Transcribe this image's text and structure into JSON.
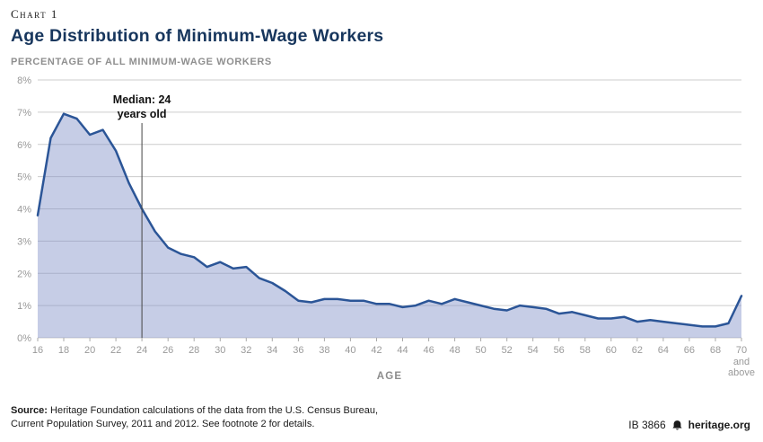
{
  "header": {
    "kicker": "Chart 1",
    "title": "Age Distribution of Minimum-Wage Workers",
    "subtitle": "PERCENTAGE OF ALL MINIMUM-WAGE WORKERS"
  },
  "chart_data": {
    "type": "area",
    "title": "Age Distribution of Minimum-Wage Workers",
    "xlabel": "AGE",
    "ylabel": "PERCENTAGE OF ALL MINIMUM-WAGE WORKERS",
    "ylim": [
      0,
      8
    ],
    "y_tick_suffix": "%",
    "x_tick_step": 2,
    "last_tick_extra": [
      "and",
      "above"
    ],
    "grid": true,
    "x": [
      16,
      17,
      18,
      19,
      20,
      21,
      22,
      23,
      24,
      25,
      26,
      27,
      28,
      29,
      30,
      31,
      32,
      33,
      34,
      35,
      36,
      37,
      38,
      39,
      40,
      41,
      42,
      43,
      44,
      45,
      46,
      47,
      48,
      49,
      50,
      51,
      52,
      53,
      54,
      55,
      56,
      57,
      58,
      59,
      60,
      61,
      62,
      63,
      64,
      65,
      66,
      67,
      68,
      69,
      70
    ],
    "values": [
      3.8,
      6.2,
      6.95,
      6.8,
      6.3,
      6.45,
      5.8,
      4.8,
      4.0,
      3.3,
      2.8,
      2.6,
      2.5,
      2.2,
      2.35,
      2.15,
      2.2,
      1.85,
      1.7,
      1.45,
      1.15,
      1.1,
      1.2,
      1.2,
      1.15,
      1.15,
      1.05,
      1.05,
      0.95,
      1.0,
      1.15,
      1.05,
      1.2,
      1.1,
      1.0,
      0.9,
      0.85,
      1.0,
      0.95,
      0.9,
      0.75,
      0.8,
      0.7,
      0.6,
      0.6,
      0.65,
      0.5,
      0.55,
      0.5,
      0.45,
      0.4,
      0.35,
      0.35,
      0.45,
      1.3
    ],
    "annotation": {
      "x": 24,
      "lines": [
        "Median: 24",
        "years old"
      ]
    },
    "colors": {
      "line": "#2b5597",
      "fill": "#8090c8",
      "fill_opacity": 0.45,
      "grid": "#cccccc",
      "axis_text": "#999999",
      "axis_title": "#8c8c8c",
      "title_navy": "#17365d"
    }
  },
  "footer": {
    "source_label": "Source:",
    "source_rest_line1": " Heritage Foundation calculations of the data from the U.S. Census Bureau,",
    "source_line2": "Current Population Survey, 2011 and 2012. See footnote 2 for details.",
    "report_id": "IB 3866",
    "website": "heritage.org"
  }
}
